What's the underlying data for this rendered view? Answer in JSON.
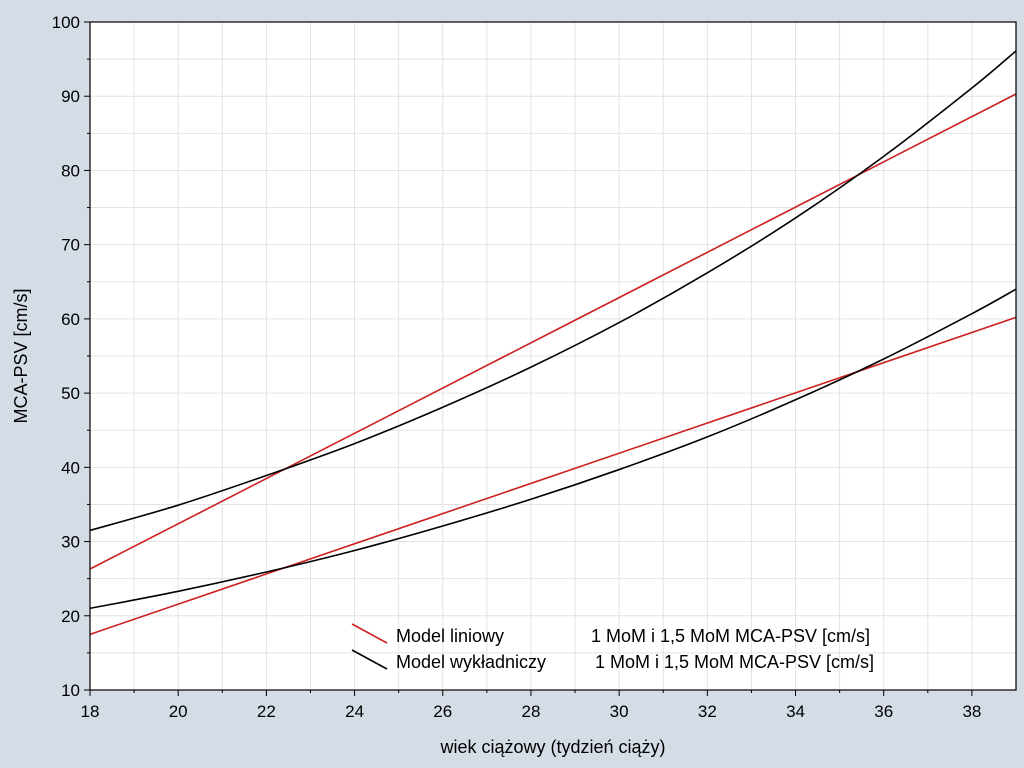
{
  "chart_data": {
    "type": "line",
    "title": "",
    "xlabel": "wiek ciążowy (tydzień ciąży)",
    "ylabel": "MCA-PSV [cm/s]",
    "xlim": [
      18,
      39
    ],
    "ylim": [
      10,
      100
    ],
    "xticks": [
      "18",
      "20",
      "22",
      "24",
      "26",
      "28",
      "30",
      "32",
      "34",
      "36",
      "38"
    ],
    "yticks": [
      "10",
      "20",
      "30",
      "40",
      "50",
      "60",
      "70",
      "80",
      "90",
      "100"
    ],
    "grid": true,
    "legend_position": "bottom-center",
    "colors": {
      "linear": "#cc1f1f",
      "exponential": "#000000"
    },
    "legend": [
      {
        "name": "Model liniowy",
        "description": "1 MoM i 1,5 MoM MCA-PSV [cm/s]",
        "color": "#cc1f1f"
      },
      {
        "name": "Model wykładniczy",
        "description": "1 MoM i 1,5 MoM MCA-PSV [cm/s]",
        "color": "#000000"
      }
    ],
    "series": [
      {
        "name": "Model liniowy 1,5 MoM",
        "kind": "linear",
        "color": "#cc1f1f",
        "x": [
          18,
          39
        ],
        "y": [
          26.3,
          90.3
        ]
      },
      {
        "name": "Model liniowy 1 MoM",
        "kind": "linear",
        "color": "#cc1f1f",
        "x": [
          18,
          39
        ],
        "y": [
          17.5,
          60.2
        ]
      },
      {
        "name": "Model wykładniczy 1,5 MoM",
        "kind": "exponential",
        "color": "#000000",
        "x": [
          18,
          20,
          22,
          24,
          26,
          28,
          30,
          32,
          34,
          36,
          38,
          39
        ],
        "y": [
          31.5,
          34.9,
          38.9,
          43.2,
          48.1,
          53.5,
          59.5,
          66.2,
          73.6,
          81.9,
          91.1,
          96.1
        ]
      },
      {
        "name": "Model wykładniczy 1 MoM",
        "kind": "exponential",
        "color": "#000000",
        "x": [
          18,
          20,
          22,
          24,
          26,
          28,
          30,
          32,
          34,
          36,
          38,
          39
        ],
        "y": [
          21.0,
          23.3,
          25.9,
          28.8,
          32.1,
          35.7,
          39.7,
          44.1,
          49.1,
          54.6,
          60.7,
          64.0
        ]
      }
    ]
  }
}
